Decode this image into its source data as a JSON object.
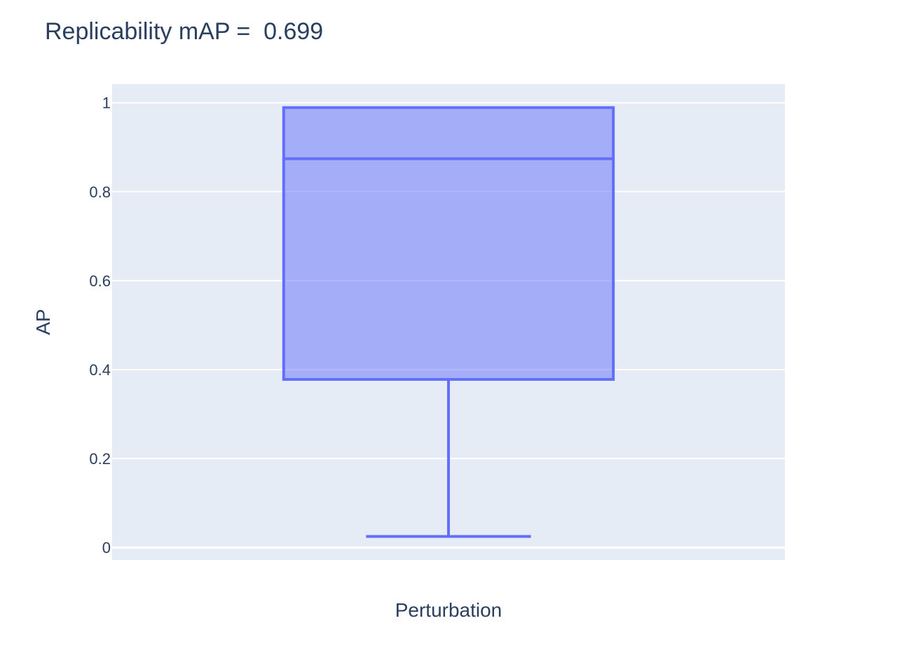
{
  "chart_data": {
    "type": "box",
    "title": "Replicability mAP =  0.699",
    "xlabel": "Perturbation",
    "ylabel": "AP",
    "ylim": [
      -0.028,
      1.042
    ],
    "yticks": [
      0,
      0.2,
      0.4,
      0.6,
      0.8,
      1
    ],
    "ytick_labels": [
      "0",
      "0.2",
      "0.4",
      "0.6",
      "0.8",
      "1"
    ],
    "series": [
      {
        "name": "Perturbation",
        "lower_fence": 0.025,
        "q1": 0.378,
        "median": 0.874,
        "q3": 0.989,
        "upper_fence": 0.989
      }
    ],
    "colors": {
      "box_line": "#636efa",
      "box_fill": "rgba(99,110,250,0.5)",
      "plot_bg": "#e5ecf6",
      "grid": "#ffffff",
      "text": "#2a3f5f"
    }
  }
}
